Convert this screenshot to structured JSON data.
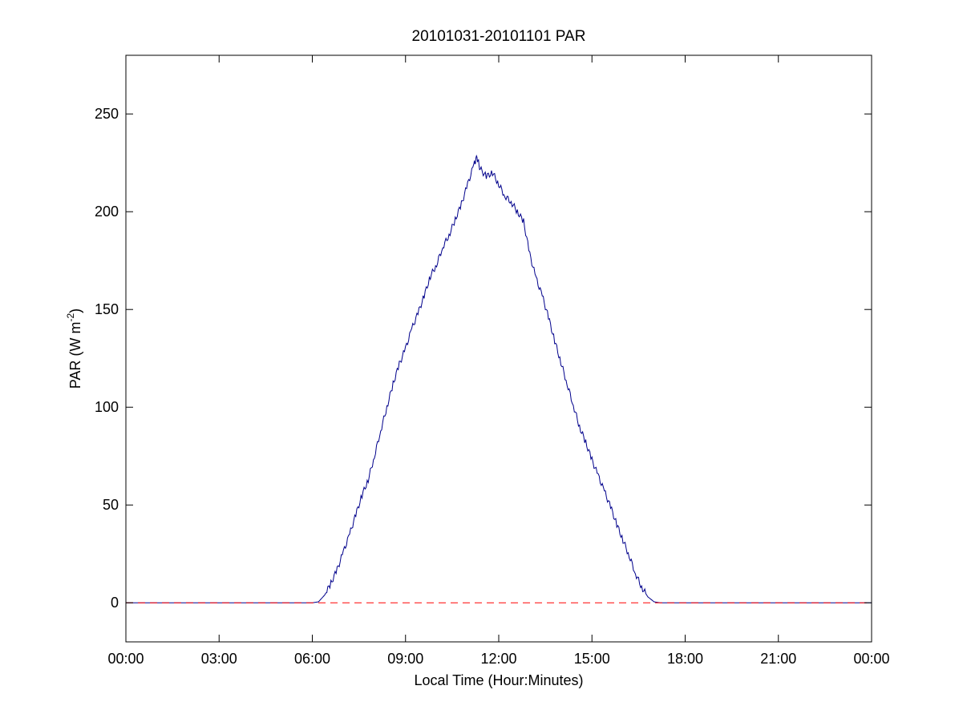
{
  "chart_data": {
    "type": "line",
    "title": "20101031-20101101 PAR",
    "xlabel": "Local Time (Hour:Minutes)",
    "ylabel": {
      "prefix": "PAR (W m",
      "superscript": "-2",
      "suffix": ")"
    },
    "x_unit": "hours",
    "xlim": [
      0,
      24
    ],
    "ylim": [
      -20,
      280
    ],
    "x_ticks": [
      0,
      3,
      6,
      9,
      12,
      15,
      18,
      21,
      24
    ],
    "x_tick_labels": [
      "00:00",
      "03:00",
      "06:00",
      "09:00",
      "12:00",
      "15:00",
      "18:00",
      "21:00",
      "00:00"
    ],
    "y_ticks": [
      0,
      50,
      100,
      150,
      200,
      250
    ],
    "y_tick_labels": [
      "0",
      "50",
      "100",
      "150",
      "200",
      "250"
    ],
    "grid": false,
    "legend": "none",
    "series": [
      {
        "color": "#00008b",
        "style": "solid",
        "points": [
          [
            0,
            0
          ],
          [
            6.0,
            0
          ],
          [
            6.2,
            0.5
          ],
          [
            6.4,
            4
          ],
          [
            6.6,
            10
          ],
          [
            6.8,
            17
          ],
          [
            7.0,
            26
          ],
          [
            7.2,
            35
          ],
          [
            7.4,
            45
          ],
          [
            7.6,
            55
          ],
          [
            7.8,
            63
          ],
          [
            8.0,
            75
          ],
          [
            8.2,
            88
          ],
          [
            8.4,
            100
          ],
          [
            8.6,
            112
          ],
          [
            8.8,
            122
          ],
          [
            9.0,
            130
          ],
          [
            9.2,
            140
          ],
          [
            9.4,
            148
          ],
          [
            9.6,
            157
          ],
          [
            9.8,
            167
          ],
          [
            10.0,
            173
          ],
          [
            10.2,
            182
          ],
          [
            10.4,
            188
          ],
          [
            10.6,
            196
          ],
          [
            10.8,
            204
          ],
          [
            11.0,
            214
          ],
          [
            11.2,
            224
          ],
          [
            11.3,
            228
          ],
          [
            11.4,
            222
          ],
          [
            11.6,
            218
          ],
          [
            11.8,
            220
          ],
          [
            12.0,
            214
          ],
          [
            12.2,
            208
          ],
          [
            12.4,
            205
          ],
          [
            12.6,
            200
          ],
          [
            12.8,
            195
          ],
          [
            13.0,
            178
          ],
          [
            13.2,
            166
          ],
          [
            13.4,
            157
          ],
          [
            13.6,
            146
          ],
          [
            13.8,
            134
          ],
          [
            14.0,
            123
          ],
          [
            14.2,
            112
          ],
          [
            14.4,
            101
          ],
          [
            14.6,
            90
          ],
          [
            14.8,
            82
          ],
          [
            15.0,
            73
          ],
          [
            15.2,
            65
          ],
          [
            15.4,
            57
          ],
          [
            15.6,
            49
          ],
          [
            15.8,
            40
          ],
          [
            16.0,
            32
          ],
          [
            16.2,
            24
          ],
          [
            16.4,
            15
          ],
          [
            16.6,
            8
          ],
          [
            16.8,
            3
          ],
          [
            17.0,
            0.5
          ],
          [
            17.2,
            0
          ],
          [
            24,
            0
          ]
        ]
      },
      {
        "color": "#ff0000",
        "style": "dashed",
        "points": [
          [
            0,
            0
          ],
          [
            24,
            0
          ]
        ]
      }
    ]
  }
}
